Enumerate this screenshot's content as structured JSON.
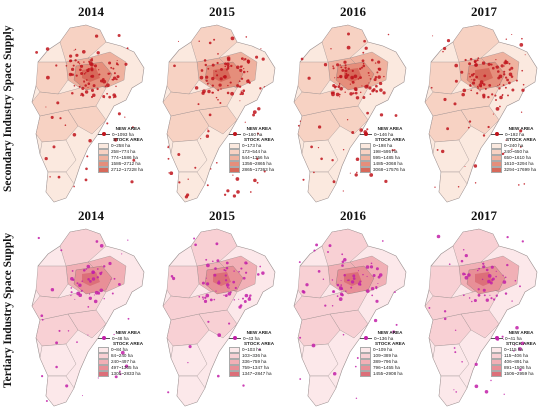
{
  "row_labels": {
    "secondary": "Secondary Industry Space Supply",
    "tertiary": "Tertiary Industry Space Supply"
  },
  "legend_headers": {
    "new_area": "NEW AREA",
    "stock_area": "STOCK AREA"
  },
  "colors": {
    "secondary_dot": "#c0141c",
    "tertiary_dot": "#c21fa8",
    "secondary_stock": [
      "#fbe9df",
      "#f7d2c3",
      "#efb29f",
      "#e58e7b",
      "#d7695a"
    ],
    "tertiary_stock": [
      "#fce8ea",
      "#f8d0d4",
      "#f1b0b6",
      "#e88f97",
      "#dc6f79"
    ]
  },
  "secondary": [
    {
      "year": "2014",
      "new_area": "0~1093 ha",
      "stock": [
        "0~258 ha",
        "258~774 ha",
        "774~1586 ha",
        "1586~2712 ha",
        "2712~17228 ha"
      ]
    },
    {
      "year": "2015",
      "new_area": "0~160 ha",
      "stock": [
        "0~173 ha",
        "173~544 ha",
        "544~1356 ha",
        "1356~2865 ha",
        "2865~17363 ha"
      ]
    },
    {
      "year": "2016",
      "new_area": "0~146 ha",
      "stock": [
        "0~198 ha",
        "198~595 ha",
        "595~1485 ha",
        "1485~3068 ha",
        "3068~17576 ha"
      ]
    },
    {
      "year": "2017",
      "new_area": "0~192 ha",
      "stock": [
        "0~240 ha",
        "240~650 ha",
        "650~1610 ha",
        "1610~3294 ha",
        "3294~17699 ha"
      ]
    }
  ],
  "tertiary": [
    {
      "year": "2014",
      "new_area": "0~48 ha",
      "stock": [
        "0~84 ha",
        "84~240 ha",
        "240~497 ha",
        "497~1305 ha",
        "1305~2833 ha"
      ]
    },
    {
      "year": "2015",
      "new_area": "0~43 ha",
      "stock": [
        "0~103 ha",
        "103~336 ha",
        "336~759 ha",
        "759~1347 ha",
        "1347~2847 ha"
      ]
    },
    {
      "year": "2016",
      "new_area": "0~136 ha",
      "stock": [
        "0~109 ha",
        "109~389 ha",
        "389~796 ha",
        "796~1455 ha",
        "1455~2908 ha"
      ]
    },
    {
      "year": "2017",
      "new_area": "0~41 ha",
      "stock": [
        "0~115 ha",
        "115~406 ha",
        "406~891 ha",
        "891~1506 ha",
        "1506~2959 ha"
      ]
    }
  ]
}
